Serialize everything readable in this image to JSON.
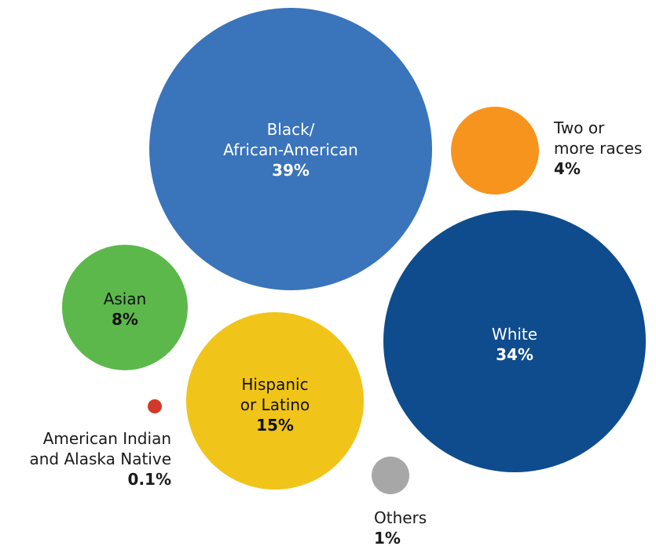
{
  "chart_data": {
    "type": "bubble",
    "title": "",
    "colors": {
      "inside_text": "#ffffff",
      "inside_text_dark": "#111111",
      "outside_text": "#1a1a1a"
    },
    "series": [
      {
        "key": "black-african-american",
        "label_lines": [
          "Black/",
          "African-American"
        ],
        "value_label": "39%",
        "value": 39,
        "color": "#3a74bb",
        "label_position": "inside"
      },
      {
        "key": "white",
        "label_lines": [
          "White"
        ],
        "value_label": "34%",
        "value": 34,
        "color": "#0e4c8d",
        "label_position": "inside"
      },
      {
        "key": "hispanic-or-latino",
        "label_lines": [
          "Hispanic",
          "or Latino"
        ],
        "value_label": "15%",
        "value": 15,
        "color": "#f0c419",
        "label_position": "inside"
      },
      {
        "key": "asian",
        "label_lines": [
          "Asian"
        ],
        "value_label": "8%",
        "value": 8,
        "color": "#5cb84b",
        "label_position": "inside"
      },
      {
        "key": "two-or-more-races",
        "label_lines": [
          "Two or",
          "more races"
        ],
        "value_label": "4%",
        "value": 4,
        "color": "#f7941d",
        "label_position": "right"
      },
      {
        "key": "others",
        "label_lines": [
          "Others"
        ],
        "value_label": "1%",
        "value": 1,
        "color": "#a7a7a7",
        "label_position": "below"
      },
      {
        "key": "american-indian-and-alaska-native",
        "label_lines": [
          "American Indian",
          "and Alaska Native"
        ],
        "value_label": "0.1%",
        "value": 0.1,
        "color": "#d13a2a",
        "label_position": "below-left"
      }
    ]
  }
}
